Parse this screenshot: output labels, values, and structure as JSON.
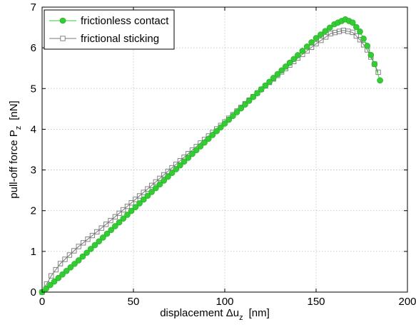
{
  "chart_data": {
    "type": "line",
    "xlabel_main": "displacement Δu",
    "xlabel_sub": "z",
    "xlabel_unit": "[nm]",
    "ylabel_main": "pull-off force P",
    "ylabel_sub": "z",
    "ylabel_unit": "[nN]",
    "xlim": [
      0,
      200
    ],
    "ylim": [
      0,
      7
    ],
    "xticks": [
      "0",
      "50",
      "100",
      "150",
      "200"
    ],
    "yticks": [
      "0",
      "1",
      "2",
      "3",
      "4",
      "5",
      "6",
      "7"
    ],
    "grid": true,
    "legend_position": "top-left",
    "series": [
      {
        "name": "frictionless contact",
        "color": "#33cc33",
        "marker": "filled-circle",
        "points": [
          [
            0,
            0
          ],
          [
            20,
            0.78
          ],
          [
            40,
            1.62
          ],
          [
            60,
            2.46
          ],
          [
            80,
            3.3
          ],
          [
            100,
            4.14
          ],
          [
            120,
            4.98
          ],
          [
            140,
            5.82
          ],
          [
            150,
            6.24
          ],
          [
            160,
            6.58
          ],
          [
            166,
            6.7
          ],
          [
            170,
            6.62
          ],
          [
            174,
            6.4
          ],
          [
            178,
            6.05
          ],
          [
            182,
            5.6
          ],
          [
            185,
            5.2
          ]
        ]
      },
      {
        "name": "frictional sticking",
        "color": "#777777",
        "marker": "open-square",
        "points": [
          [
            0,
            0
          ],
          [
            5,
            0.4
          ],
          [
            10,
            0.7
          ],
          [
            20,
            1.12
          ],
          [
            30,
            1.48
          ],
          [
            40,
            1.85
          ],
          [
            60,
            2.62
          ],
          [
            80,
            3.4
          ],
          [
            100,
            4.18
          ],
          [
            120,
            4.98
          ],
          [
            140,
            5.75
          ],
          [
            150,
            6.1
          ],
          [
            158,
            6.35
          ],
          [
            165,
            6.43
          ],
          [
            170,
            6.38
          ],
          [
            174,
            6.2
          ],
          [
            178,
            5.95
          ],
          [
            182,
            5.6
          ],
          [
            184,
            5.4
          ]
        ]
      }
    ]
  }
}
